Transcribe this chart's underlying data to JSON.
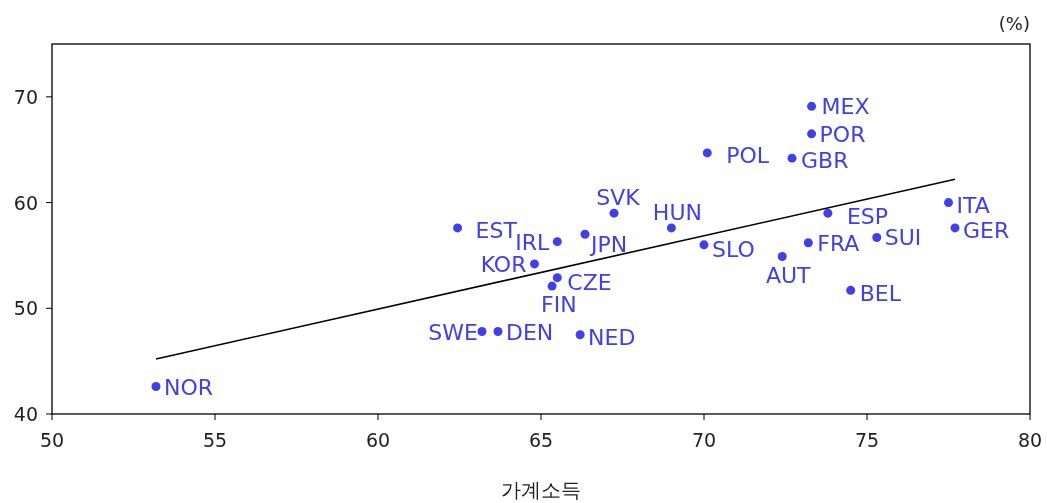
{
  "chart_data": {
    "type": "scatter",
    "xlabel": "가계소득",
    "xlim": [
      50,
      80
    ],
    "ylim": [
      40,
      75
    ],
    "xticks": [
      50,
      55,
      60,
      65,
      70,
      75,
      80
    ],
    "yticks": [
      40,
      50,
      60,
      70
    ],
    "grid": false,
    "annotations": [
      "(%)",
      {
        "text": "NOR",
        "x": 53.19,
        "y": 42.6
      },
      {
        "text": "SWE",
        "x": 63.19,
        "y": 47.8
      },
      {
        "text": "DEN",
        "x": 63.68,
        "y": 47.8
      },
      {
        "text": "NED",
        "x": 66.2,
        "y": 47.5
      },
      {
        "text": "FIN",
        "x": 65.34,
        "y": 52.1
      },
      {
        "text": "CZE",
        "x": 65.5,
        "y": 52.9
      },
      {
        "text": "KOR",
        "x": 64.8,
        "y": 54.2
      },
      {
        "text": "EST",
        "x": 62.44,
        "y": 57.6
      },
      {
        "text": "IRL",
        "x": 65.5,
        "y": 56.3
      },
      {
        "text": "JPN",
        "x": 66.35,
        "y": 57.0
      },
      {
        "text": "SVK",
        "x": 67.24,
        "y": 59.0
      },
      {
        "text": "HUN",
        "x": 69.0,
        "y": 57.6
      },
      {
        "text": "SLO",
        "x": 70.0,
        "y": 56.0
      },
      {
        "text": "POL",
        "x": 70.1,
        "y": 64.7
      },
      {
        "text": "AUT",
        "x": 72.4,
        "y": 54.9
      },
      {
        "text": "FRA",
        "x": 73.2,
        "y": 56.2
      },
      {
        "text": "MEX",
        "x": 73.3,
        "y": 69.1
      },
      {
        "text": "POR",
        "x": 73.3,
        "y": 66.5
      },
      {
        "text": "GBR",
        "x": 72.7,
        "y": 64.2
      },
      {
        "text": "ESP",
        "x": 73.8,
        "y": 59.0
      },
      {
        "text": "SUI",
        "x": 75.3,
        "y": 56.7
      },
      {
        "text": "BEL",
        "x": 74.5,
        "y": 51.7
      },
      {
        "text": "ITA",
        "x": 77.5,
        "y": 60.0
      },
      {
        "text": "GER",
        "x": 77.7,
        "y": 57.6
      }
    ],
    "series": [
      {
        "type": "scatter",
        "marker": "circle",
        "color": "#4040e8",
        "x": [
          53.19,
          63.19,
          63.68,
          66.2,
          65.34,
          65.5,
          64.8,
          62.44,
          65.5,
          66.35,
          67.24,
          69.0,
          70.0,
          70.1,
          72.4,
          73.2,
          73.3,
          73.3,
          72.7,
          73.8,
          75.3,
          74.5,
          77.5,
          77.7
        ],
        "values": [
          42.6,
          47.8,
          47.8,
          47.5,
          52.1,
          52.9,
          54.2,
          57.6,
          56.3,
          57.0,
          59.0,
          57.6,
          56.0,
          64.7,
          54.9,
          56.2,
          69.1,
          66.5,
          64.2,
          59.0,
          56.7,
          51.7,
          60.0,
          57.6
        ]
      },
      {
        "type": "line",
        "color": "#000000",
        "x": [
          53.19,
          77.7
        ],
        "values": [
          45.2,
          62.2
        ]
      }
    ]
  }
}
